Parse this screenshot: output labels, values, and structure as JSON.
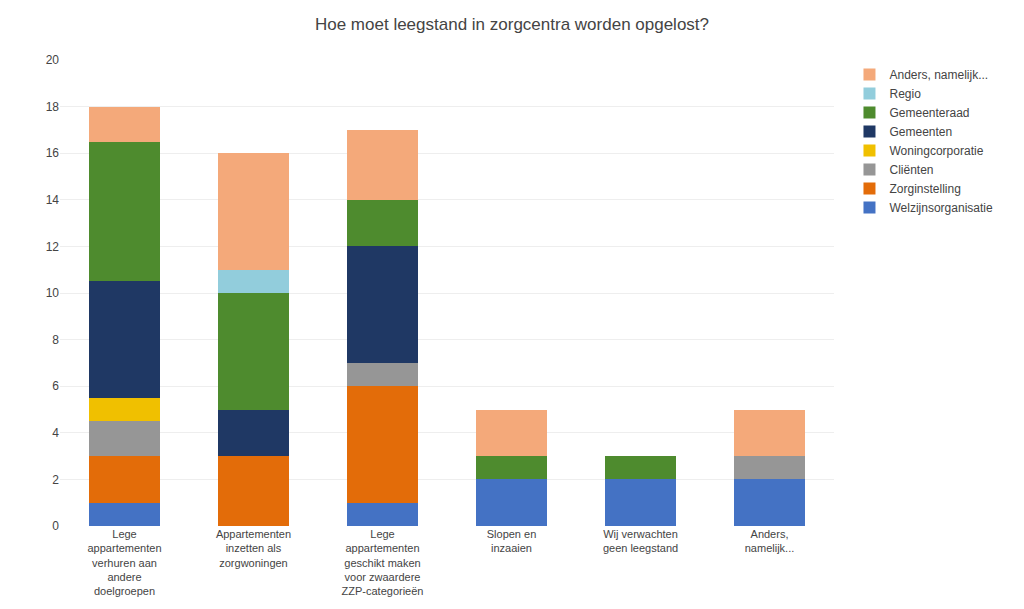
{
  "chart_data": {
    "type": "bar",
    "stacked": true,
    "title": "Hoe moet leegstand in zorgcentra worden opgelost?",
    "categories": [
      "Lege\nappartementen\nverhuren aan\nandere\ndoelgroepen",
      "Appartementen\ninzetten als\nzorgwoningen",
      "Lege\nappartementen\ngeschikt maken\nvoor zwaardere\nZZP-categorieën",
      "Slopen en\ninzaaien",
      "Wij verwachten\ngeen leegstand",
      "Anders,\nnamelijk..."
    ],
    "series": [
      {
        "name": "Welzijnsorganisatie",
        "color": "#4472C4",
        "values": [
          1,
          0,
          1,
          2,
          2,
          2
        ]
      },
      {
        "name": "Zorginstelling",
        "color": "#E36C09",
        "values": [
          2,
          3,
          5,
          0,
          0,
          0
        ]
      },
      {
        "name": "Cliënten",
        "color": "#969696",
        "values": [
          1.5,
          0,
          1,
          0,
          0,
          1
        ]
      },
      {
        "name": "Woningcorporatie",
        "color": "#F0C000",
        "values": [
          1,
          0,
          0,
          0,
          0,
          0
        ]
      },
      {
        "name": "Gemeenten",
        "color": "#1F3864",
        "values": [
          5,
          2,
          5,
          0,
          0,
          0
        ]
      },
      {
        "name": "Gemeenteraad",
        "color": "#4E8B2E",
        "values": [
          6,
          5,
          2,
          1,
          1,
          0
        ]
      },
      {
        "name": "Regio",
        "color": "#92CDDC",
        "values": [
          0,
          1,
          0,
          0,
          0,
          0
        ]
      },
      {
        "name": "Anders, namelijk...",
        "color": "#F4A97A",
        "values": [
          1.5,
          5,
          3,
          2,
          0,
          2
        ]
      }
    ],
    "ylim": [
      0,
      20
    ],
    "yticks": [
      0,
      2,
      4,
      6,
      8,
      10,
      12,
      14,
      16,
      18,
      20
    ],
    "grid": true,
    "legend": "right"
  }
}
